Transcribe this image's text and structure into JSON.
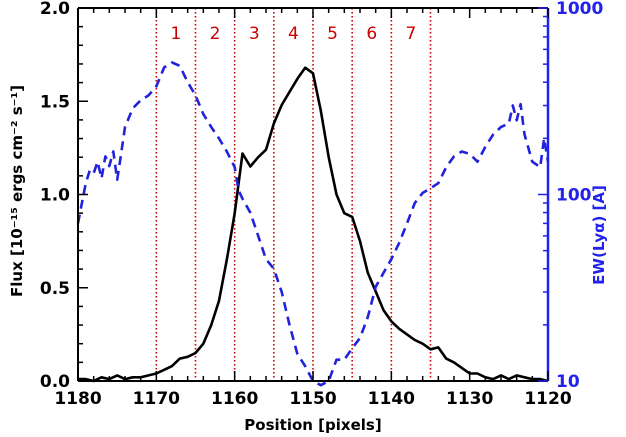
{
  "chart_data": {
    "type": "line",
    "xlabel": "Position [pixels]",
    "ylabel_left": "Flux [10⁻¹⁵ ergs cm⁻² s⁻¹]",
    "ylabel_right": "EW(Lyα) [A]",
    "xlim": [
      1180,
      1120
    ],
    "ylim_left": [
      0,
      2.0
    ],
    "ylim_right": [
      10,
      1000
    ],
    "right_scale": "log",
    "x_ticks": [
      "1180",
      "1170",
      "1160",
      "1150",
      "1140",
      "1130",
      "1120"
    ],
    "x_tick_values": [
      1180,
      1170,
      1160,
      1150,
      1140,
      1130,
      1120
    ],
    "y_left_ticks": [
      "0.0",
      "0.5",
      "1.0",
      "1.5",
      "2.0"
    ],
    "y_left_tick_values": [
      0,
      0.5,
      1.0,
      1.5,
      2.0
    ],
    "y_right_ticks": [
      "10",
      "100",
      "1000"
    ],
    "y_right_tick_values": [
      10,
      100,
      1000
    ],
    "region_boundaries": [
      1170,
      1165,
      1160,
      1155,
      1150,
      1145,
      1140,
      1135
    ],
    "region_labels": [
      "1",
      "2",
      "3",
      "4",
      "5",
      "6",
      "7"
    ],
    "colors": {
      "flux": "#000000",
      "ew": "#2222dd",
      "regions": "#cc0000",
      "right_axis": "#2222ee"
    },
    "series": [
      {
        "axis": "left",
        "style": "solid",
        "x": [
          1180,
          1179,
          1178,
          1177,
          1176,
          1175,
          1174,
          1173,
          1172,
          1171,
          1170,
          1169,
          1168,
          1167,
          1166,
          1165,
          1164,
          1163,
          1162,
          1161,
          1160,
          1159,
          1158,
          1157,
          1156,
          1155,
          1154,
          1153,
          1152,
          1151,
          1150,
          1149,
          1148,
          1147,
          1146,
          1145,
          1144,
          1143,
          1142,
          1141,
          1140,
          1139,
          1138,
          1137,
          1136,
          1135,
          1134,
          1133,
          1132,
          1131,
          1130,
          1129,
          1128,
          1127,
          1126,
          1125,
          1124,
          1123,
          1122,
          1121,
          1120
        ],
        "values": [
          0.01,
          0.01,
          0.0,
          0.02,
          0.01,
          0.03,
          0.01,
          0.02,
          0.02,
          0.03,
          0.04,
          0.06,
          0.08,
          0.12,
          0.13,
          0.15,
          0.2,
          0.3,
          0.43,
          0.65,
          0.9,
          1.22,
          1.15,
          1.2,
          1.24,
          1.38,
          1.48,
          1.55,
          1.62,
          1.68,
          1.65,
          1.45,
          1.2,
          1.0,
          0.9,
          0.88,
          0.75,
          0.58,
          0.48,
          0.38,
          0.32,
          0.28,
          0.25,
          0.22,
          0.2,
          0.17,
          0.18,
          0.12,
          0.1,
          0.07,
          0.04,
          0.04,
          0.02,
          0.01,
          0.03,
          0.01,
          0.03,
          0.02,
          0.01,
          0.01,
          0.0
        ]
      },
      {
        "axis": "right",
        "style": "dashed",
        "x": [
          1180,
          1179.5,
          1179,
          1178.5,
          1178,
          1177.5,
          1177,
          1176.5,
          1176,
          1175.5,
          1175,
          1174.5,
          1174,
          1173,
          1172,
          1171,
          1170,
          1169,
          1168,
          1167,
          1166,
          1165,
          1164,
          1163,
          1162,
          1161,
          1160,
          1159.5,
          1159,
          1158,
          1157,
          1156,
          1155,
          1154,
          1153,
          1152,
          1151,
          1150,
          1149,
          1148,
          1147,
          1146,
          1145,
          1144,
          1143,
          1142,
          1141,
          1140,
          1139,
          1138,
          1137,
          1136,
          1135,
          1134,
          1133,
          1132,
          1131,
          1130,
          1129,
          1128,
          1127,
          1126,
          1125,
          1124.5,
          1124,
          1123.5,
          1123,
          1122,
          1121,
          1120.5,
          1120
        ],
        "values": [
          70,
          90,
          115,
          135,
          130,
          150,
          122,
          160,
          142,
          170,
          120,
          165,
          230,
          290,
          320,
          340,
          380,
          480,
          510,
          490,
          400,
          340,
          270,
          230,
          200,
          170,
          140,
          105,
          95,
          80,
          60,
          45,
          40,
          30,
          20,
          14,
          12,
          10,
          9.5,
          10,
          13,
          13,
          15,
          17,
          22,
          32,
          38,
          45,
          55,
          70,
          90,
          102,
          108,
          115,
          140,
          160,
          170,
          165,
          150,
          180,
          210,
          230,
          240,
          300,
          250,
          305,
          210,
          150,
          140,
          200,
          150
        ]
      }
    ]
  }
}
